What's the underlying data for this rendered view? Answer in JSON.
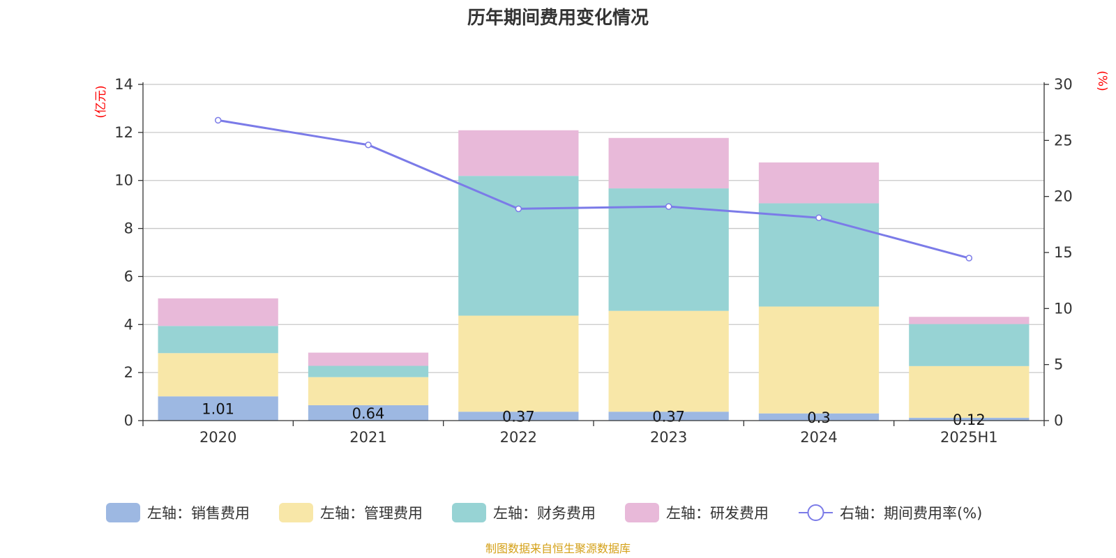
{
  "chart_data": {
    "type": "bar",
    "stacked": true,
    "title": "历年期间费用变化情况",
    "left_axis_unit": "(亿元)",
    "right_axis_unit": "(%)",
    "categories": [
      "2020",
      "2021",
      "2022",
      "2023",
      "2024",
      "2025H1"
    ],
    "ylim_left": [
      0,
      14
    ],
    "yticks_left": [
      "0",
      "2",
      "4",
      "6",
      "8",
      "10",
      "12",
      "14"
    ],
    "ylim_right": [
      0,
      30
    ],
    "yticks_right": [
      "0",
      "5",
      "10",
      "15",
      "20",
      "25",
      "30"
    ],
    "grid": true,
    "legend_position": "bottom",
    "series": [
      {
        "name": "左轴：销售费用",
        "type": "bar",
        "axis": "left",
        "color": "#9db8e2",
        "values": [
          1.01,
          0.64,
          0.37,
          0.37,
          0.3,
          0.12
        ],
        "labels": [
          "1.01",
          "0.64",
          "0.37",
          "0.37",
          "0.3",
          "0.12"
        ]
      },
      {
        "name": "左轴：管理费用",
        "type": "bar",
        "axis": "left",
        "color": "#f8e7a8",
        "values": [
          1.8,
          1.17,
          4.0,
          4.2,
          4.45,
          2.15
        ]
      },
      {
        "name": "左轴：财务费用",
        "type": "bar",
        "axis": "left",
        "color": "#97d3d4",
        "values": [
          1.13,
          0.47,
          5.82,
          5.1,
          4.3,
          1.75
        ]
      },
      {
        "name": "左轴：研发费用",
        "type": "bar",
        "axis": "left",
        "color": "#e8b9d9",
        "values": [
          1.15,
          0.55,
          1.9,
          2.1,
          1.7,
          0.3
        ]
      },
      {
        "name": "右轴：期间费用率(%)",
        "type": "line",
        "axis": "right",
        "color": "#7b7be8",
        "values": [
          26.8,
          24.6,
          18.9,
          19.1,
          18.1,
          14.5
        ]
      }
    ]
  },
  "footer": {
    "source": "制图数据来自恒生聚源数据库"
  }
}
